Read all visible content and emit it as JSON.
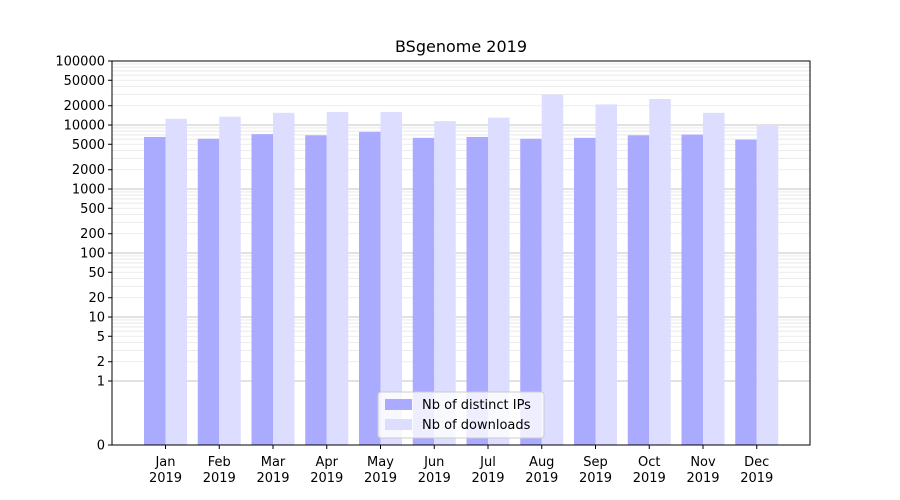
{
  "chart_data": {
    "type": "bar",
    "title": "BSgenome 2019",
    "xlabel": "",
    "ylabel": "",
    "yscale": "symlog",
    "ylim": [
      0,
      100000
    ],
    "yticks": [
      0,
      1,
      2,
      5,
      10,
      20,
      50,
      100,
      200,
      500,
      1000,
      2000,
      5000,
      10000,
      20000,
      50000,
      100000
    ],
    "grid": true,
    "legend_position": "bottom-center",
    "categories": [
      "Jan\n2019",
      "Feb\n2019",
      "Mar\n2019",
      "Apr\n2019",
      "May\n2019",
      "Jun\n2019",
      "Jul\n2019",
      "Aug\n2019",
      "Sep\n2019",
      "Oct\n2019",
      "Nov\n2019",
      "Dec\n2019"
    ],
    "series": [
      {
        "name": "Nb of distinct IPs",
        "color": "#aaaaff",
        "values": [
          6500,
          6100,
          7200,
          6900,
          7800,
          6300,
          6500,
          6100,
          6300,
          6900,
          7100,
          5900
        ]
      },
      {
        "name": "Nb of downloads",
        "color": "#ddddff",
        "values": [
          12500,
          13500,
          15500,
          16000,
          16000,
          11500,
          13000,
          30000,
          21000,
          25500,
          15500,
          10000
        ]
      }
    ]
  }
}
